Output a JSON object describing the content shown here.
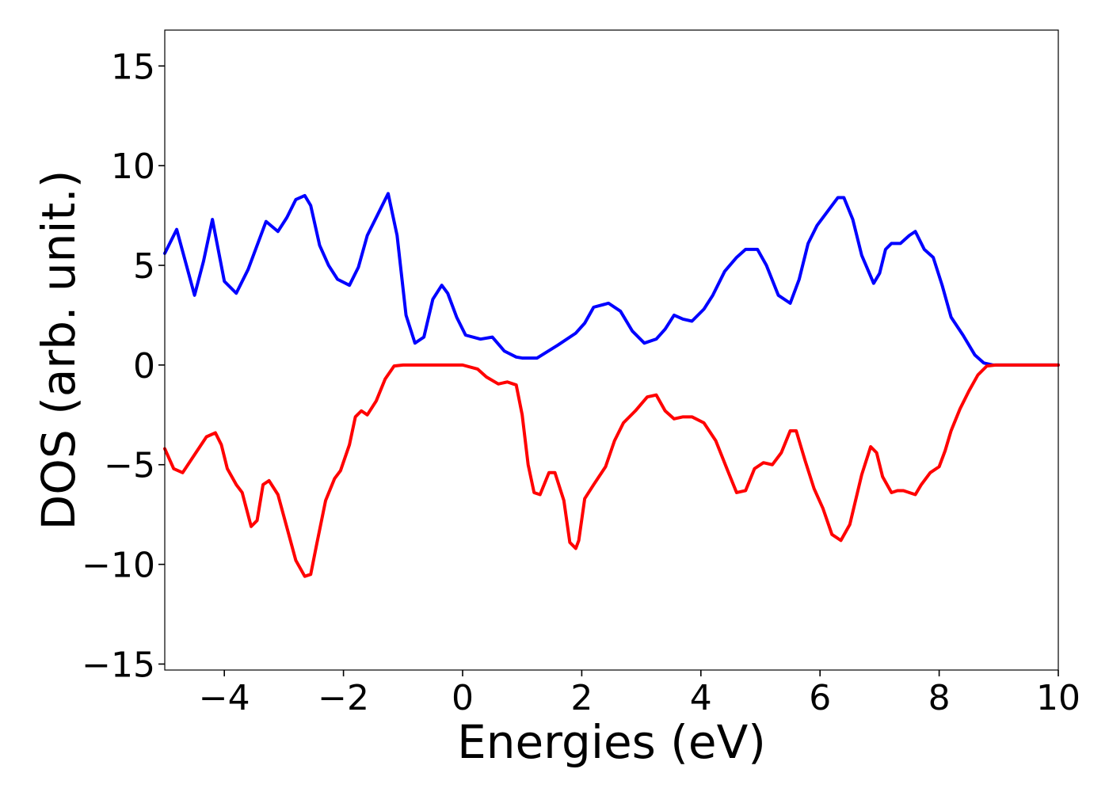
{
  "chart_data": {
    "type": "line",
    "title": "",
    "xlabel": "Energies (eV)",
    "ylabel": "DOS (arb. unit.)",
    "xlim": [
      -5,
      10
    ],
    "ylim": [
      -15.3,
      16.8
    ],
    "xticks": [
      -4,
      -2,
      0,
      2,
      4,
      6,
      8,
      10
    ],
    "xtick_labels": [
      "−4",
      "−2",
      "0",
      "2",
      "4",
      "6",
      "8",
      "10"
    ],
    "yticks": [
      15,
      10,
      5,
      0,
      -5,
      -10,
      -15
    ],
    "ytick_labels": [
      "15",
      "10",
      "5",
      "0",
      "−5",
      "−10",
      "−15"
    ],
    "grid": false,
    "legend": "none",
    "series": [
      {
        "color": "#0000ff",
        "x": [
          -5.0,
          -4.8,
          -4.5,
          -4.35,
          -4.2,
          -4.0,
          -3.8,
          -3.6,
          -3.45,
          -3.3,
          -3.1,
          -2.95,
          -2.8,
          -2.65,
          -2.55,
          -2.4,
          -2.25,
          -2.1,
          -1.9,
          -1.75,
          -1.6,
          -1.4,
          -1.25,
          -1.1,
          -0.95,
          -0.8,
          -0.65,
          -0.5,
          -0.35,
          -0.25,
          -0.1,
          0.05,
          0.3,
          0.5,
          0.7,
          0.9,
          1.0,
          1.25,
          1.6,
          1.9,
          2.05,
          2.2,
          2.45,
          2.65,
          2.85,
          3.05,
          3.25,
          3.4,
          3.55,
          3.7,
          3.85,
          4.05,
          4.2,
          4.4,
          4.6,
          4.75,
          4.95,
          5.1,
          5.3,
          5.5,
          5.65,
          5.8,
          5.95,
          6.1,
          6.3,
          6.4,
          6.55,
          6.7,
          6.9,
          7.0,
          7.1,
          7.2,
          7.35,
          7.5,
          7.6,
          7.75,
          7.9,
          8.05,
          8.2,
          8.4,
          8.6,
          8.75,
          8.9,
          9.2,
          9.6,
          10.0
        ],
        "y": [
          5.6,
          6.8,
          3.5,
          5.2,
          7.3,
          4.2,
          3.6,
          4.8,
          6.0,
          7.2,
          6.7,
          7.4,
          8.3,
          8.5,
          8.0,
          6.0,
          5.0,
          4.3,
          4.0,
          4.9,
          6.5,
          7.7,
          8.6,
          6.5,
          2.5,
          1.1,
          1.4,
          3.3,
          4.0,
          3.6,
          2.4,
          1.5,
          1.3,
          1.4,
          0.7,
          0.4,
          0.35,
          0.35,
          1.0,
          1.6,
          2.1,
          2.9,
          3.1,
          2.7,
          1.7,
          1.1,
          1.3,
          1.8,
          2.5,
          2.3,
          2.2,
          2.8,
          3.5,
          4.7,
          5.4,
          5.8,
          5.8,
          5.0,
          3.5,
          3.1,
          4.3,
          6.1,
          7.0,
          7.6,
          8.4,
          8.4,
          7.3,
          5.5,
          4.1,
          4.6,
          5.8,
          6.1,
          6.1,
          6.5,
          6.7,
          5.8,
          5.4,
          4.0,
          2.4,
          1.5,
          0.5,
          0.1,
          0.0,
          0.0,
          0.0,
          0.0
        ]
      },
      {
        "color": "#ff0000",
        "x": [
          -5.0,
          -4.85,
          -4.7,
          -4.5,
          -4.3,
          -4.15,
          -4.05,
          -3.95,
          -3.8,
          -3.7,
          -3.55,
          -3.45,
          -3.35,
          -3.25,
          -3.1,
          -3.0,
          -2.8,
          -2.65,
          -2.55,
          -2.45,
          -2.3,
          -2.15,
          -2.05,
          -1.9,
          -1.8,
          -1.7,
          -1.6,
          -1.45,
          -1.3,
          -1.15,
          -1.0,
          -0.8,
          -0.5,
          0.0,
          0.25,
          0.4,
          0.6,
          0.75,
          0.9,
          1.0,
          1.1,
          1.2,
          1.3,
          1.45,
          1.55,
          1.7,
          1.8,
          1.9,
          1.95,
          2.05,
          2.2,
          2.4,
          2.55,
          2.7,
          2.9,
          3.1,
          3.25,
          3.4,
          3.55,
          3.7,
          3.85,
          4.05,
          4.25,
          4.45,
          4.6,
          4.75,
          4.9,
          5.05,
          5.2,
          5.35,
          5.5,
          5.6,
          5.75,
          5.9,
          6.05,
          6.2,
          6.35,
          6.5,
          6.7,
          6.85,
          6.95,
          7.05,
          7.2,
          7.3,
          7.4,
          7.5,
          7.6,
          7.7,
          7.85,
          8.0,
          8.1,
          8.2,
          8.35,
          8.5,
          8.65,
          8.8,
          8.95,
          9.2,
          10.0
        ],
        "y": [
          -4.2,
          -5.2,
          -5.4,
          -4.5,
          -3.6,
          -3.4,
          -4.0,
          -5.2,
          -6.0,
          -6.4,
          -8.1,
          -7.8,
          -6.0,
          -5.8,
          -6.5,
          -7.6,
          -9.8,
          -10.6,
          -10.5,
          -9.0,
          -6.8,
          -5.7,
          -5.3,
          -4.0,
          -2.6,
          -2.3,
          -2.5,
          -1.8,
          -0.7,
          -0.05,
          0.0,
          0.0,
          0.0,
          0.0,
          -0.2,
          -0.6,
          -0.95,
          -0.85,
          -1.0,
          -2.5,
          -5.0,
          -6.4,
          -6.5,
          -5.4,
          -5.4,
          -6.8,
          -8.9,
          -9.2,
          -8.8,
          -6.7,
          -6.0,
          -5.1,
          -3.8,
          -2.9,
          -2.3,
          -1.6,
          -1.5,
          -2.3,
          -2.7,
          -2.6,
          -2.6,
          -2.9,
          -3.8,
          -5.3,
          -6.4,
          -6.3,
          -5.2,
          -4.9,
          -5.0,
          -4.4,
          -3.3,
          -3.3,
          -4.8,
          -6.2,
          -7.2,
          -8.5,
          -8.8,
          -8.0,
          -5.5,
          -4.1,
          -4.4,
          -5.6,
          -6.4,
          -6.3,
          -6.3,
          -6.4,
          -6.5,
          -6.0,
          -5.4,
          -5.1,
          -4.3,
          -3.3,
          -2.2,
          -1.3,
          -0.5,
          -0.05,
          0.0,
          0.0,
          0.0
        ]
      }
    ]
  }
}
